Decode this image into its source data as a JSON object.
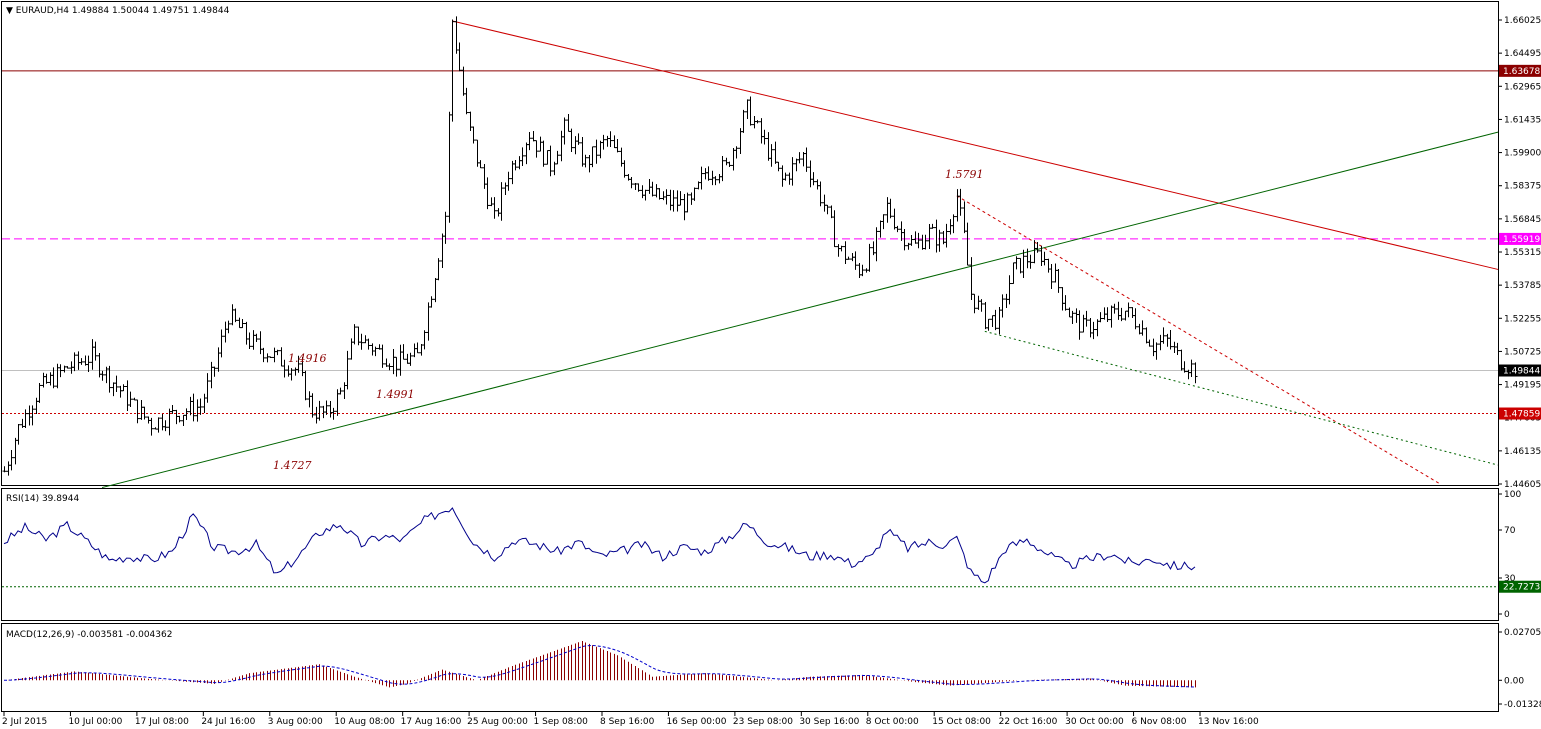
{
  "header": {
    "symbol": "EURAUD,H4",
    "ohlc": "1.49884 1.50044 1.49751 1.49844"
  },
  "rsi_label": "RSI(14) 39.8944",
  "macd_label": "MACD(12,26,9) -0.003581 -0.004362",
  "price_tags": {
    "resistance": "1.63678",
    "pivot": "1.55919",
    "current": "1.49844",
    "support": "1.47859",
    "rsi_level": "22.7273"
  },
  "annotations": [
    "1.5791",
    "1.4916",
    "1.4991",
    "1.4727"
  ],
  "colors": {
    "resistance": "#8b0000",
    "pivot": "#ff00ff",
    "support": "#cc0000",
    "trend_red": "#cc0000",
    "trend_green": "#006400",
    "rsi_line": "#00008b",
    "macd_hist": "#8b0000",
    "macd_signal": "#0000cd"
  },
  "chart_data": [
    {
      "type": "candlestick",
      "title": "EURAUD,H4",
      "x_ticks": [
        "2 Jul 2015",
        "10 Jul 00:00",
        "17 Jul 08:00",
        "24 Jul 16:00",
        "3 Aug 00:00",
        "10 Aug 08:00",
        "17 Aug 16:00",
        "25 Aug 00:00",
        "1 Sep 08:00",
        "8 Sep 16:00",
        "16 Sep 00:00",
        "23 Sep 08:00",
        "30 Sep 16:00",
        "8 Oct 00:00",
        "15 Oct 08:00",
        "22 Oct 16:00",
        "30 Oct 00:00",
        "6 Nov 08:00",
        "13 Nov 16:00"
      ],
      "y_ticks": [
        "1.66025",
        "1.64495",
        "1.62965",
        "1.61435",
        "1.59900",
        "1.58375",
        "1.56845",
        "1.55315",
        "1.53785",
        "1.52255",
        "1.50725",
        "1.49195",
        "1.47665",
        "1.46135",
        "1.44605"
      ],
      "ylim": [
        1.445,
        1.666
      ],
      "close_path": [
        [
          0,
          1.452
        ],
        [
          4,
          1.472
        ],
        [
          10,
          1.49
        ],
        [
          18,
          1.5
        ],
        [
          25,
          1.505
        ],
        [
          30,
          1.495
        ],
        [
          38,
          1.48
        ],
        [
          42,
          1.474
        ],
        [
          48,
          1.478
        ],
        [
          56,
          1.482
        ],
        [
          60,
          1.5
        ],
        [
          64,
          1.524
        ],
        [
          70,
          1.512
        ],
        [
          76,
          1.506
        ],
        [
          84,
          1.498
        ],
        [
          88,
          1.48
        ],
        [
          92,
          1.478
        ],
        [
          96,
          1.488
        ],
        [
          100,
          1.515
        ],
        [
          106,
          1.508
        ],
        [
          112,
          1.502
        ],
        [
          118,
          1.505
        ],
        [
          122,
          1.535
        ],
        [
          126,
          1.57
        ],
        [
          128,
          1.6598
        ],
        [
          132,
          1.615
        ],
        [
          136,
          1.59
        ],
        [
          140,
          1.568
        ],
        [
          144,
          1.59
        ],
        [
          150,
          1.608
        ],
        [
          156,
          1.593
        ],
        [
          160,
          1.61
        ],
        [
          166,
          1.594
        ],
        [
          172,
          1.605
        ],
        [
          178,
          1.589
        ],
        [
          184,
          1.58
        ],
        [
          190,
          1.576
        ],
        [
          196,
          1.575
        ],
        [
          200,
          1.59
        ],
        [
          206,
          1.592
        ],
        [
          212,
          1.619
        ],
        [
          218,
          1.6
        ],
        [
          222,
          1.586
        ],
        [
          228,
          1.598
        ],
        [
          234,
          1.575
        ],
        [
          238,
          1.555
        ],
        [
          244,
          1.545
        ],
        [
          248,
          1.553
        ],
        [
          252,
          1.574
        ],
        [
          256,
          1.562
        ],
        [
          260,
          1.556
        ],
        [
          264,
          1.562
        ],
        [
          268,
          1.558
        ],
        [
          272,
          1.5791
        ],
        [
          274,
          1.56
        ],
        [
          276,
          1.534
        ],
        [
          280,
          1.522
        ],
        [
          284,
          1.522
        ],
        [
          288,
          1.545
        ],
        [
          292,
          1.55
        ],
        [
          296,
          1.552
        ],
        [
          300,
          1.541
        ],
        [
          304,
          1.525
        ],
        [
          308,
          1.518
        ],
        [
          312,
          1.52
        ],
        [
          316,
          1.524
        ],
        [
          320,
          1.526
        ],
        [
          324,
          1.52
        ],
        [
          328,
          1.51
        ],
        [
          332,
          1.512
        ],
        [
          336,
          1.503
        ],
        [
          340,
          1.499
        ]
      ]
    },
    {
      "type": "line",
      "title": "RSI(14)",
      "y_ticks": [
        "100",
        "70",
        "30",
        "0"
      ],
      "ylim": [
        0,
        100
      ],
      "level": 22.7273,
      "values": [
        [
          0,
          60
        ],
        [
          6,
          72
        ],
        [
          12,
          62
        ],
        [
          18,
          74
        ],
        [
          24,
          60
        ],
        [
          30,
          45
        ],
        [
          36,
          48
        ],
        [
          42,
          45
        ],
        [
          48,
          52
        ],
        [
          54,
          82
        ],
        [
          60,
          55
        ],
        [
          66,
          52
        ],
        [
          72,
          58
        ],
        [
          78,
          32
        ],
        [
          84,
          48
        ],
        [
          90,
          68
        ],
        [
          96,
          75
        ],
        [
          102,
          58
        ],
        [
          108,
          65
        ],
        [
          114,
          62
        ],
        [
          120,
          78
        ],
        [
          128,
          90
        ],
        [
          134,
          60
        ],
        [
          140,
          48
        ],
        [
          146,
          62
        ],
        [
          152,
          58
        ],
        [
          158,
          52
        ],
        [
          164,
          60
        ],
        [
          170,
          48
        ],
        [
          176,
          52
        ],
        [
          182,
          58
        ],
        [
          188,
          48
        ],
        [
          194,
          56
        ],
        [
          200,
          52
        ],
        [
          206,
          62
        ],
        [
          212,
          75
        ],
        [
          218,
          60
        ],
        [
          224,
          55
        ],
        [
          230,
          48
        ],
        [
          236,
          50
        ],
        [
          242,
          42
        ],
        [
          248,
          48
        ],
        [
          252,
          70
        ],
        [
          258,
          55
        ],
        [
          264,
          60
        ],
        [
          268,
          58
        ],
        [
          272,
          63
        ],
        [
          276,
          35
        ],
        [
          280,
          26
        ],
        [
          286,
          55
        ],
        [
          292,
          62
        ],
        [
          298,
          50
        ],
        [
          304,
          40
        ],
        [
          310,
          46
        ],
        [
          316,
          50
        ],
        [
          322,
          42
        ],
        [
          328,
          46
        ],
        [
          334,
          40
        ],
        [
          340,
          40
        ]
      ]
    },
    {
      "type": "histogram_line",
      "title": "MACD(12,26,9)",
      "y_ticks": [
        "0.02705",
        "0.00",
        "-0.013286"
      ],
      "ylim": [
        -0.013286,
        0.02705
      ],
      "values": [
        [
          0,
          0.0
        ],
        [
          20,
          0.005
        ],
        [
          40,
          0.001
        ],
        [
          60,
          -0.002
        ],
        [
          70,
          0.004
        ],
        [
          90,
          0.009
        ],
        [
          100,
          0.002
        ],
        [
          110,
          -0.004
        ],
        [
          115,
          -0.002
        ],
        [
          125,
          0.006
        ],
        [
          135,
          0.0
        ],
        [
          145,
          0.008
        ],
        [
          165,
          0.022
        ],
        [
          175,
          0.014
        ],
        [
          185,
          0.002
        ],
        [
          200,
          0.004
        ],
        [
          210,
          0.002
        ],
        [
          220,
          0.0
        ],
        [
          230,
          0.002
        ],
        [
          245,
          0.003
        ],
        [
          260,
          -0.001
        ],
        [
          270,
          -0.003
        ],
        [
          290,
          0.0
        ],
        [
          310,
          0.001
        ],
        [
          320,
          -0.003
        ],
        [
          340,
          -0.004
        ]
      ]
    }
  ]
}
